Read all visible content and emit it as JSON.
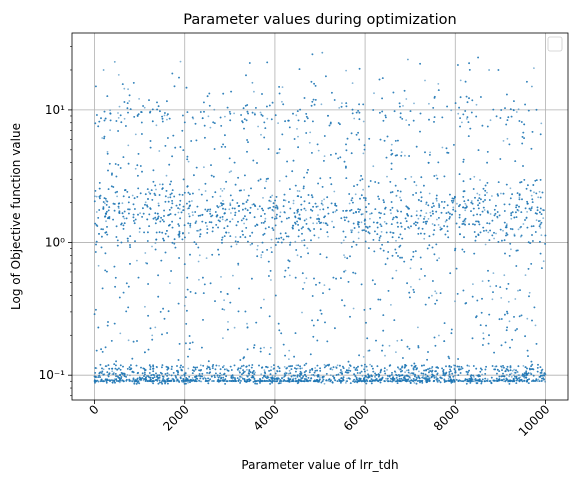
{
  "chart_data": {
    "type": "scatter",
    "title": "Parameter values during optimization",
    "xlabel": "Parameter value of lrr_tdh",
    "ylabel": "Log of Objective function value",
    "xlim": [
      -500,
      10500
    ],
    "ylim": [
      0.065,
      38
    ],
    "yscale": "log",
    "grid": true,
    "legend": "top-right",
    "x_ticks": [
      {
        "value": 0,
        "label": "0"
      },
      {
        "value": 2000,
        "label": "2000"
      },
      {
        "value": 4000,
        "label": "4000"
      },
      {
        "value": 6000,
        "label": "6000"
      },
      {
        "value": 8000,
        "label": "8000"
      },
      {
        "value": 10000,
        "label": "10000"
      }
    ],
    "x_tick_rotation": 45,
    "y_ticks": [
      {
        "value": 0.1,
        "label": "10⁻¹"
      },
      {
        "value": 1,
        "label": "10⁰"
      },
      {
        "value": 10,
        "label": "10¹"
      }
    ],
    "point_color": "#1f77b4",
    "point_count": 9000,
    "distribution": {
      "x_range": [
        0,
        10000
      ],
      "floor_value": 0.09,
      "floor_band": [
        0.088,
        0.12
      ],
      "cluster_center": 1.6,
      "cluster_band": [
        1.0,
        2.6
      ],
      "max_value": 27
    },
    "sample_points": [
      {
        "x": 5050,
        "y": 27
      },
      {
        "x": 6950,
        "y": 24
      },
      {
        "x": 450,
        "y": 23
      },
      {
        "x": 8750,
        "y": 20
      },
      {
        "x": 200,
        "y": 20
      },
      {
        "x": 3500,
        "y": 16
      },
      {
        "x": 9700,
        "y": 15
      }
    ]
  }
}
